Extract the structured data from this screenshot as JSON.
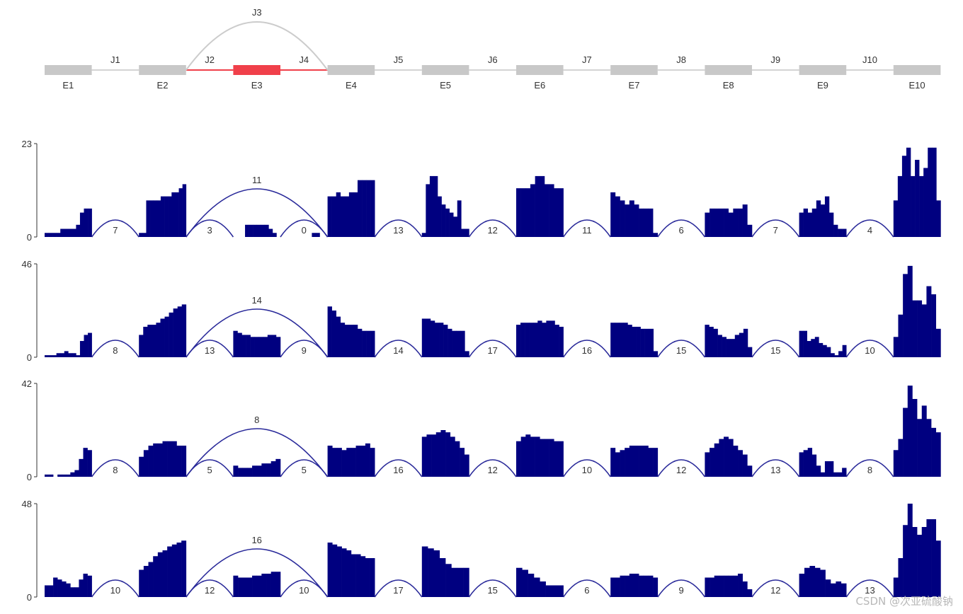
{
  "gene_model": {
    "exons": [
      {
        "name": "E1",
        "start": 0,
        "end": 1,
        "highlight": false
      },
      {
        "name": "E2",
        "start": 2,
        "end": 3,
        "highlight": false
      },
      {
        "name": "E3",
        "start": 4,
        "end": 5,
        "highlight": true
      },
      {
        "name": "E4",
        "start": 6,
        "end": 7,
        "highlight": false
      },
      {
        "name": "E5",
        "start": 8,
        "end": 9,
        "highlight": false
      },
      {
        "name": "E6",
        "start": 10,
        "end": 11,
        "highlight": false
      },
      {
        "name": "E7",
        "start": 12,
        "end": 13,
        "highlight": false
      },
      {
        "name": "E8",
        "start": 14,
        "end": 15,
        "highlight": false
      },
      {
        "name": "E9",
        "start": 16,
        "end": 17,
        "highlight": false
      },
      {
        "name": "E10",
        "start": 18,
        "end": 19,
        "highlight": false
      }
    ],
    "junctions": [
      {
        "name": "J1",
        "from": 0,
        "to": 1,
        "highlight": false
      },
      {
        "name": "J2",
        "from": 1,
        "to": 2,
        "highlight": true
      },
      {
        "name": "J3",
        "from": 1,
        "to": 3,
        "highlight": false
      },
      {
        "name": "J4",
        "from": 2,
        "to": 3,
        "highlight": true
      },
      {
        "name": "J5",
        "from": 3,
        "to": 4,
        "highlight": false
      },
      {
        "name": "J6",
        "from": 4,
        "to": 5,
        "highlight": false
      },
      {
        "name": "J7",
        "from": 5,
        "to": 6,
        "highlight": false
      },
      {
        "name": "J8",
        "from": 6,
        "to": 7,
        "highlight": false
      },
      {
        "name": "J9",
        "from": 7,
        "to": 8,
        "highlight": false
      },
      {
        "name": "J10",
        "from": 8,
        "to": 9,
        "highlight": false
      }
    ],
    "colors": {
      "exon": "#c8c8c8",
      "intron": "#d4d4d4",
      "highlight": "#f0404a",
      "skip_arc": "#cccccc"
    }
  },
  "chart_data": {
    "type": "sashimi",
    "colors": {
      "coverage": "#000080",
      "arc": "#2a2a9a",
      "axis": "#333333"
    },
    "tracks": [
      {
        "ymax": 23,
        "ticks": [
          0,
          23
        ],
        "coverage": [
          [
            1,
            1,
            1,
            1,
            2,
            2,
            2,
            2,
            3,
            6,
            7,
            7
          ],
          [
            0,
            0,
            0,
            0,
            0,
            0,
            0,
            0,
            0,
            0,
            0,
            0
          ],
          [
            1,
            1,
            9,
            9,
            9,
            9,
            10,
            10,
            10,
            11,
            11,
            12,
            13
          ],
          [
            0,
            0,
            0,
            0,
            0,
            0,
            0,
            0,
            0,
            0,
            0,
            0
          ],
          [
            0,
            0,
            0,
            3,
            3,
            3,
            3,
            3,
            3,
            2,
            1,
            0
          ],
          [
            0,
            0,
            0,
            0,
            0,
            0,
            0,
            0,
            1,
            1,
            0,
            0
          ],
          [
            10,
            10,
            11,
            10,
            10,
            11,
            11,
            14,
            14,
            14,
            14
          ],
          [
            0,
            0,
            0,
            0,
            0,
            0,
            0,
            0,
            0,
            0,
            0,
            0
          ],
          [
            1,
            13,
            15,
            15,
            10,
            8,
            7,
            6,
            5,
            9,
            2,
            2
          ],
          [
            0,
            0,
            0,
            0,
            0,
            0,
            0,
            0,
            0,
            0,
            0,
            0
          ],
          [
            12,
            12,
            12,
            13,
            15,
            15,
            13,
            13,
            12,
            12
          ],
          [
            0,
            0,
            0,
            0,
            0,
            0,
            0,
            0,
            0,
            0,
            0,
            0
          ],
          [
            11,
            10,
            9,
            8,
            9,
            8,
            7,
            7,
            7,
            1
          ],
          [
            0,
            0,
            0,
            0,
            0,
            0,
            0,
            0,
            0,
            0,
            0,
            0
          ],
          [
            6,
            7,
            7,
            7,
            7,
            6,
            7,
            7,
            8,
            3
          ],
          [
            0,
            0,
            0,
            0,
            0,
            0,
            0,
            0,
            0,
            0,
            0,
            0
          ],
          [
            6,
            7,
            6,
            7,
            9,
            8,
            10,
            6,
            3,
            2,
            2
          ],
          [
            0,
            0,
            0,
            0,
            0,
            0,
            0,
            0,
            0,
            0,
            0,
            0
          ],
          [
            9,
            15,
            20,
            22,
            15,
            19,
            15,
            17,
            22,
            22,
            9
          ]
        ],
        "junction_counts": [
          7,
          3,
          11,
          0,
          13,
          12,
          11,
          6,
          7,
          4
        ]
      },
      {
        "ymax": 46,
        "ticks": [
          0,
          46
        ],
        "coverage": [
          [
            1,
            1,
            1,
            2,
            2,
            3,
            2,
            2,
            1,
            8,
            11,
            12
          ],
          [
            0,
            0,
            0,
            0,
            0,
            0,
            0,
            0,
            0,
            0,
            0,
            0
          ],
          [
            11,
            15,
            16,
            16,
            17,
            19,
            20,
            22,
            24,
            25,
            26
          ],
          [
            0,
            0,
            0,
            0,
            0,
            0,
            0,
            0,
            0,
            0,
            0,
            0
          ],
          [
            13,
            12,
            11,
            11,
            10,
            10,
            10,
            10,
            11,
            11,
            10
          ],
          [
            0,
            0,
            0,
            0,
            0,
            0,
            0,
            0,
            0,
            0,
            0,
            0
          ],
          [
            25,
            23,
            20,
            17,
            16,
            16,
            16,
            14,
            13,
            13,
            13
          ],
          [
            0,
            0,
            0,
            0,
            0,
            0,
            0,
            0,
            0,
            0,
            0,
            0
          ],
          [
            19,
            19,
            18,
            17,
            17,
            16,
            14,
            13,
            13,
            13,
            3
          ],
          [
            0,
            0,
            0,
            0,
            0,
            0,
            0,
            0,
            0,
            0,
            0,
            0
          ],
          [
            16,
            17,
            17,
            17,
            17,
            18,
            17,
            18,
            18,
            16,
            15
          ],
          [
            0,
            0,
            0,
            0,
            0,
            0,
            0,
            0,
            0,
            0,
            0,
            0
          ],
          [
            17,
            17,
            17,
            17,
            16,
            15,
            15,
            14,
            14,
            14,
            3
          ],
          [
            0,
            0,
            0,
            0,
            0,
            0,
            0,
            0,
            0,
            0,
            0,
            0
          ],
          [
            16,
            15,
            14,
            11,
            10,
            9,
            9,
            11,
            12,
            14,
            5
          ],
          [
            0,
            0,
            0,
            0,
            0,
            0,
            0,
            0,
            0,
            0,
            0,
            0
          ],
          [
            13,
            13,
            8,
            9,
            10,
            7,
            6,
            5,
            2,
            1,
            3,
            6
          ],
          [
            0,
            0,
            0,
            0,
            0,
            0,
            0,
            0,
            0,
            0,
            0,
            0
          ],
          [
            10,
            21,
            41,
            45,
            28,
            28,
            26,
            35,
            31,
            14
          ]
        ],
        "junction_counts": [
          8,
          13,
          14,
          9,
          14,
          17,
          16,
          15,
          15,
          10
        ]
      },
      {
        "ymax": 42,
        "ticks": [
          0,
          42
        ],
        "coverage": [
          [
            1,
            1,
            0,
            1,
            1,
            1,
            2,
            3,
            8,
            13,
            12
          ],
          [
            0,
            0,
            0,
            0,
            0,
            0,
            0,
            0,
            0,
            0,
            0,
            0
          ],
          [
            9,
            12,
            14,
            15,
            15,
            16,
            16,
            16,
            14,
            14
          ],
          [
            0,
            0,
            0,
            0,
            0,
            0,
            0,
            0,
            0,
            0,
            0,
            0
          ],
          [
            5,
            4,
            4,
            4,
            5,
            5,
            6,
            6,
            7,
            8
          ],
          [
            0,
            0,
            0,
            0,
            0,
            0,
            0,
            0,
            0,
            0,
            0,
            0
          ],
          [
            14,
            13,
            13,
            12,
            13,
            13,
            14,
            14,
            15,
            13
          ],
          [
            0,
            0,
            0,
            0,
            0,
            0,
            0,
            0,
            0,
            0,
            0,
            0
          ],
          [
            18,
            19,
            19,
            20,
            21,
            20,
            18,
            16,
            13,
            10
          ],
          [
            0,
            0,
            0,
            0,
            0,
            0,
            0,
            0,
            0,
            0,
            0,
            0
          ],
          [
            16,
            18,
            19,
            18,
            18,
            17,
            17,
            17,
            16,
            16
          ],
          [
            0,
            0,
            0,
            0,
            0,
            0,
            0,
            0,
            0,
            0,
            0,
            0
          ],
          [
            13,
            11,
            12,
            13,
            14,
            14,
            14,
            14,
            13,
            13
          ],
          [
            0,
            0,
            0,
            0,
            0,
            0,
            0,
            0,
            0,
            0,
            0,
            0
          ],
          [
            11,
            13,
            15,
            17,
            18,
            17,
            14,
            12,
            10,
            5
          ],
          [
            0,
            0,
            0,
            0,
            0,
            0,
            0,
            0,
            0,
            0,
            0,
            0
          ],
          [
            11,
            12,
            13,
            10,
            5,
            2,
            7,
            7,
            2,
            2,
            4
          ],
          [
            0,
            0,
            0,
            0,
            0,
            0,
            0,
            0,
            0,
            0,
            0,
            0
          ],
          [
            12,
            17,
            31,
            41,
            35,
            26,
            32,
            26,
            22,
            20
          ]
        ],
        "junction_counts": [
          8,
          5,
          8,
          5,
          16,
          12,
          10,
          12,
          13,
          8
        ]
      },
      {
        "ymax": 48,
        "ticks": [
          0,
          48
        ],
        "coverage": [
          [
            6,
            6,
            10,
            9,
            8,
            7,
            5,
            5,
            9,
            12,
            11
          ],
          [
            0,
            0,
            0,
            0,
            0,
            0,
            0,
            0,
            0,
            0,
            0,
            0
          ],
          [
            14,
            16,
            18,
            21,
            23,
            24,
            26,
            27,
            28,
            29
          ],
          [
            0,
            0,
            0,
            0,
            0,
            0,
            0,
            0,
            0,
            0,
            0,
            0
          ],
          [
            11,
            10,
            10,
            10,
            11,
            11,
            12,
            12,
            13,
            13
          ],
          [
            0,
            0,
            0,
            0,
            0,
            0,
            0,
            0,
            0,
            0,
            0,
            0
          ],
          [
            28,
            27,
            26,
            25,
            24,
            22,
            22,
            21,
            20,
            20
          ],
          [
            0,
            0,
            0,
            0,
            0,
            0,
            0,
            0,
            0,
            0,
            0,
            0
          ],
          [
            26,
            25,
            24,
            20,
            17,
            15,
            15,
            15
          ],
          [
            0,
            0,
            0,
            0,
            0,
            0,
            0,
            0,
            0,
            0,
            0,
            0
          ],
          [
            15,
            14,
            12,
            10,
            8,
            6,
            6,
            6
          ],
          [
            0,
            0,
            0,
            0,
            0,
            0,
            0,
            0,
            0,
            0,
            0,
            0
          ],
          [
            10,
            10,
            11,
            11,
            12,
            12,
            11,
            11,
            11,
            10
          ],
          [
            0,
            0,
            0,
            0,
            0,
            0,
            0,
            0,
            0,
            0,
            0,
            0
          ],
          [
            10,
            10,
            11,
            11,
            11,
            11,
            11,
            12,
            8,
            4
          ],
          [
            0,
            0,
            0,
            0,
            0,
            0,
            0,
            0,
            0,
            0,
            0,
            0
          ],
          [
            12,
            15,
            16,
            15,
            14,
            9,
            7,
            8,
            7
          ],
          [
            0,
            0,
            0,
            0,
            0,
            0,
            0,
            0,
            0,
            0,
            0,
            0
          ],
          [
            10,
            20,
            37,
            48,
            36,
            32,
            36,
            40,
            40,
            29
          ]
        ],
        "junction_counts": [
          10,
          12,
          16,
          10,
          17,
          15,
          6,
          9,
          12,
          13
        ]
      }
    ]
  },
  "watermark": "CSDN @次亚硫酸钠"
}
